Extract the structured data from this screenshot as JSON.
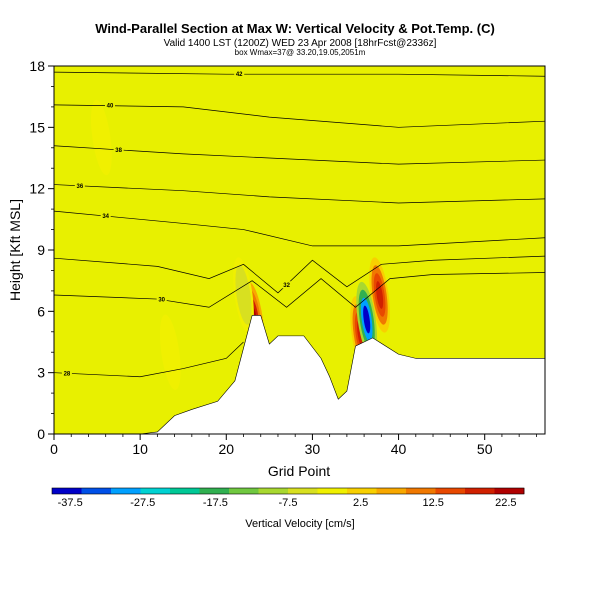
{
  "chart_data": {
    "type": "heatmap",
    "title": "Wind-Parallel Section at Max W: Vertical Velocity & Pot.Temp. (C)",
    "subtitle": "Valid 1400 LST (1200Z) WED 23 Apr 2008 [18hrFcst@2336z]",
    "subtitle2": "box Wmax=37@ 33.20,19.05,2051m",
    "xlabel": "Grid Point",
    "ylabel": "Height [Kft MSL]",
    "xlim": [
      0,
      57
    ],
    "ylim": [
      0,
      18
    ],
    "x_ticks": [
      "0",
      "10",
      "20",
      "30",
      "40",
      "50"
    ],
    "y_ticks": [
      "0",
      "3",
      "6",
      "9",
      "12",
      "15",
      "18"
    ],
    "colorbar": {
      "label": "Vertical Velocity [cm/s]",
      "tick_labels": [
        "-37.5",
        "-27.5",
        "-17.5",
        "-7.5",
        "2.5",
        "12.5",
        "22.5"
      ],
      "tick_values": [
        -37.5,
        -27.5,
        -17.5,
        -7.5,
        2.5,
        12.5,
        22.5
      ],
      "range": [
        -40,
        25
      ],
      "colors": [
        "#0000c8",
        "#0050e8",
        "#00a0ff",
        "#00d2d2",
        "#00c896",
        "#30b050",
        "#70c840",
        "#a8d830",
        "#d8e020",
        "#f0f000",
        "#f8d000",
        "#f8a800",
        "#f07800",
        "#e84800",
        "#d02000",
        "#b00000"
      ]
    },
    "background_value_color": "#e8f000",
    "terrain": [
      [
        0,
        0.0
      ],
      [
        10,
        0.0
      ],
      [
        12,
        0.1
      ],
      [
        14,
        0.9
      ],
      [
        16,
        1.2
      ],
      [
        19,
        1.6
      ],
      [
        21,
        2.6
      ],
      [
        22,
        4.2
      ],
      [
        23,
        5.8
      ],
      [
        24,
        5.8
      ],
      [
        25,
        4.4
      ],
      [
        26,
        4.8
      ],
      [
        29,
        4.8
      ],
      [
        31,
        3.7
      ],
      [
        32,
        2.8
      ],
      [
        33,
        1.7
      ],
      [
        34,
        2.1
      ],
      [
        35,
        4.3
      ],
      [
        37,
        4.7
      ],
      [
        40,
        3.9
      ],
      [
        42,
        3.7
      ],
      [
        44,
        3.7
      ],
      [
        56,
        3.7
      ],
      [
        57,
        3.7
      ]
    ],
    "updraft_cores": [
      {
        "x": 23.2,
        "y": 5.6,
        "value": 22.5
      },
      {
        "x": 35.6,
        "y": 4.9,
        "value": 17.5
      },
      {
        "x": 37.8,
        "y": 6.8,
        "value": 17.5
      }
    ],
    "downdraft_cores": [
      {
        "x": 22.0,
        "y": 6.8,
        "value": -7.5
      },
      {
        "x": 36.3,
        "y": 5.6,
        "value": -37.5
      },
      {
        "x": 13.5,
        "y": 4.0,
        "value": -2.5
      },
      {
        "x": 5.5,
        "y": 14.5,
        "value": -2.5
      }
    ],
    "isentropes": [
      {
        "value": "42",
        "points": [
          [
            0,
            17.7
          ],
          [
            20,
            17.6
          ],
          [
            40,
            17.6
          ],
          [
            57,
            17.5
          ]
        ],
        "label_x": 21.5
      },
      {
        "value": "40",
        "points": [
          [
            0,
            16.1
          ],
          [
            15,
            16.0
          ],
          [
            25,
            15.5
          ],
          [
            40,
            15.0
          ],
          [
            57,
            15.3
          ]
        ],
        "label_x": 6.5
      },
      {
        "value": "38",
        "points": [
          [
            0,
            14.1
          ],
          [
            15,
            13.7
          ],
          [
            25,
            13.5
          ],
          [
            40,
            13.2
          ],
          [
            57,
            13.4
          ]
        ],
        "label_x": 7.5
      },
      {
        "value": "36",
        "points": [
          [
            0,
            12.2
          ],
          [
            15,
            11.9
          ],
          [
            25,
            11.6
          ],
          [
            40,
            11.3
          ],
          [
            57,
            11.5
          ]
        ],
        "label_x": 3
      },
      {
        "value": "34",
        "points": [
          [
            0,
            10.9
          ],
          [
            15,
            10.3
          ],
          [
            22,
            10.0
          ],
          [
            30,
            9.2
          ],
          [
            40,
            9.2
          ],
          [
            57,
            9.6
          ]
        ],
        "label_x": 6
      },
      {
        "value": "32",
        "points": [
          [
            0,
            8.6
          ],
          [
            12,
            8.2
          ],
          [
            18,
            7.6
          ],
          [
            22,
            8.3
          ],
          [
            26,
            6.9
          ],
          [
            30,
            8.5
          ],
          [
            34,
            7.2
          ],
          [
            38,
            8.3
          ],
          [
            44,
            8.5
          ],
          [
            57,
            8.7
          ]
        ],
        "label_x": 27
      },
      {
        "value": "30",
        "points": [
          [
            0,
            6.8
          ],
          [
            12,
            6.6
          ],
          [
            18,
            6.2
          ],
          [
            23,
            7.5
          ],
          [
            27,
            6.2
          ],
          [
            31,
            7.6
          ],
          [
            35,
            6.2
          ],
          [
            39,
            7.6
          ],
          [
            44,
            7.8
          ],
          [
            57,
            7.9
          ]
        ],
        "label_x": 12.5
      },
      {
        "value": "28",
        "points": [
          [
            0,
            3.0
          ],
          [
            10,
            2.8
          ],
          [
            15,
            3.2
          ],
          [
            20,
            3.7
          ],
          [
            22,
            4.5
          ]
        ],
        "label_x": 1.5
      }
    ]
  }
}
